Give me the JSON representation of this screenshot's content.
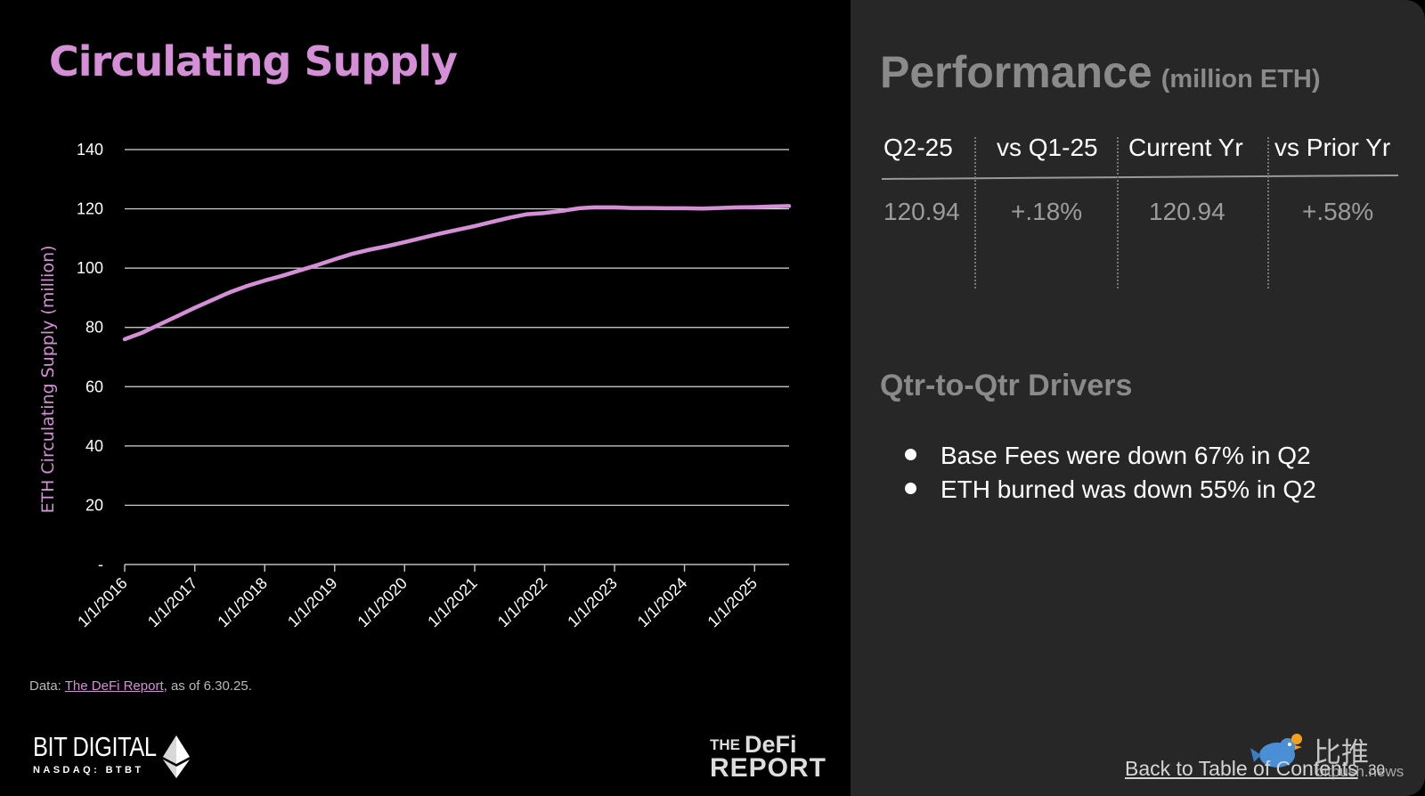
{
  "slide": {
    "title": "Circulating Supply",
    "page_number": "30"
  },
  "chart_data": {
    "type": "line",
    "ylabel": "ETH Circulating Supply (million)",
    "ylim": [
      0,
      140
    ],
    "y_ticks": [
      "-",
      "20",
      "40",
      "60",
      "80",
      "100",
      "120",
      "140"
    ],
    "x_ticks": [
      "1/1/2016",
      "1/1/2017",
      "1/1/2018",
      "1/1/2019",
      "1/1/2020",
      "1/1/2021",
      "1/1/2022",
      "1/1/2023",
      "1/1/2024",
      "1/1/2025"
    ],
    "x_range": [
      "2016-01-01",
      "2025-06-30"
    ],
    "grid": true,
    "series": [
      {
        "color": "#d48fd6",
        "points": [
          [
            "2016-01-01",
            76.0
          ],
          [
            "2016-04-01",
            78.2
          ],
          [
            "2016-07-01",
            81.0
          ],
          [
            "2016-10-01",
            83.8
          ],
          [
            "2017-01-01",
            86.6
          ],
          [
            "2017-04-01",
            89.2
          ],
          [
            "2017-07-01",
            91.8
          ],
          [
            "2017-10-01",
            94.0
          ],
          [
            "2018-01-01",
            95.8
          ],
          [
            "2018-04-01",
            97.4
          ],
          [
            "2018-07-01",
            99.2
          ],
          [
            "2018-10-01",
            101.0
          ],
          [
            "2019-01-01",
            103.0
          ],
          [
            "2019-04-01",
            104.8
          ],
          [
            "2019-07-01",
            106.2
          ],
          [
            "2019-10-01",
            107.4
          ],
          [
            "2020-01-01",
            108.8
          ],
          [
            "2020-04-01",
            110.2
          ],
          [
            "2020-07-01",
            111.6
          ],
          [
            "2020-10-01",
            112.9
          ],
          [
            "2021-01-01",
            114.2
          ],
          [
            "2021-04-01",
            115.6
          ],
          [
            "2021-07-01",
            117.0
          ],
          [
            "2021-10-01",
            118.2
          ],
          [
            "2022-01-01",
            118.6
          ],
          [
            "2022-04-01",
            119.3
          ],
          [
            "2022-07-01",
            120.2
          ],
          [
            "2022-09-15",
            120.5
          ],
          [
            "2023-01-01",
            120.5
          ],
          [
            "2023-04-01",
            120.3
          ],
          [
            "2023-07-01",
            120.3
          ],
          [
            "2023-10-01",
            120.2
          ],
          [
            "2024-01-01",
            120.2
          ],
          [
            "2024-04-01",
            120.1
          ],
          [
            "2024-07-01",
            120.3
          ],
          [
            "2024-10-01",
            120.5
          ],
          [
            "2025-01-01",
            120.6
          ],
          [
            "2025-04-01",
            120.8
          ],
          [
            "2025-06-30",
            120.94
          ]
        ]
      }
    ]
  },
  "source": {
    "prefix": "Data: ",
    "link": "The DeFi Report",
    "suffix": ", as of 6.30.25."
  },
  "logos": {
    "bit_digital": {
      "name": "BIT DIGITAL",
      "ticker": "NASDAQ: BTBT"
    },
    "defi_report": {
      "the": "THE",
      "defi": "DeFi",
      "report": "REPORT"
    }
  },
  "performance": {
    "title": "Performance",
    "unit": "(million ETH)",
    "columns": [
      {
        "header": "Q2-25",
        "value": "120.94"
      },
      {
        "header": "vs Q1-25",
        "value": "+.18%"
      },
      {
        "header": "Current Yr",
        "value": "120.94"
      },
      {
        "header": "vs Prior Yr",
        "value": "+.58%"
      }
    ]
  },
  "drivers": {
    "title": "Qtr-to-Qtr Drivers",
    "items": [
      "Base Fees were down 67% in Q2",
      "ETH burned was down 55% in Q2"
    ]
  },
  "footer": {
    "toc_link": "Back to Table of Contents"
  },
  "watermark": {
    "cn": "比推",
    "domain": "bitpush.news"
  }
}
